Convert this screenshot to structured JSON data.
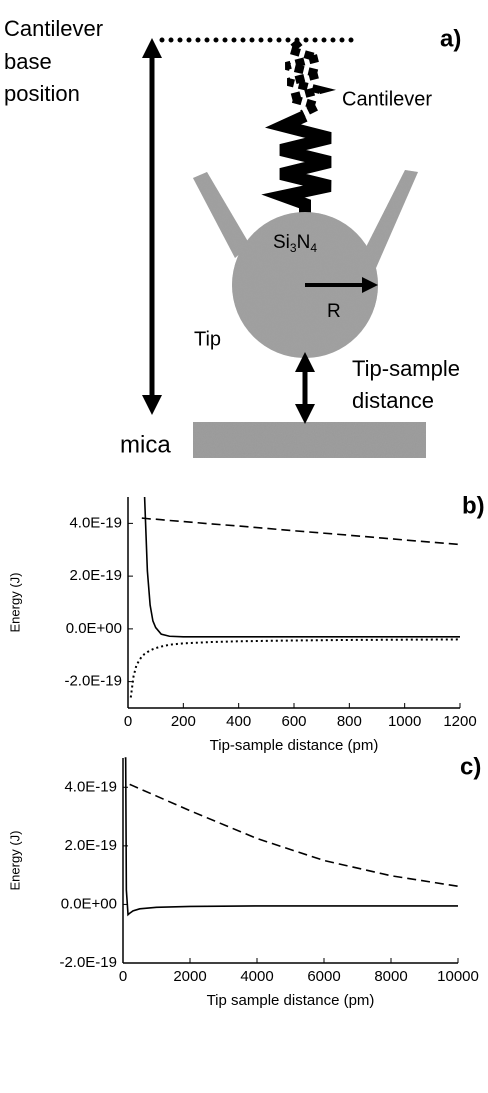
{
  "diagram": {
    "panel": "a)",
    "base_label": [
      "Cantilever",
      "base",
      "position"
    ],
    "cantilever": "Cantilever",
    "material": [
      "Si",
      "3",
      "N",
      "4"
    ],
    "radius": "R",
    "tip": "Tip",
    "distance_label": [
      "Tip-sample",
      "distance"
    ],
    "substrate": "mica"
  },
  "chart_data": [
    {
      "type": "line",
      "title": "b)",
      "xlabel": "Tip-sample distance (pm)",
      "ylabel": "Energy (J)",
      "x": [
        10,
        20,
        30,
        40,
        50,
        60,
        70,
        80,
        90,
        100,
        120,
        150,
        200,
        300,
        400,
        600,
        800,
        1000,
        1200
      ],
      "series": [
        {
          "color": "#000000",
          "dash": "solid",
          "values": [
            null,
            null,
            null,
            null,
            null,
            5e-19,
            2.2e-19,
            9e-20,
            3e-20,
            5e-21,
            -2e-20,
            -2.8e-20,
            -3e-20,
            -3e-20,
            -3e-20,
            -3e-20,
            -3e-20,
            -3e-20,
            -3e-20
          ]
        },
        {
          "color": "#000000",
          "dash": "dashed",
          "values": [
            null,
            null,
            null,
            null,
            4.2e-19,
            4.19e-19,
            4.18e-19,
            4.17e-19,
            4.17e-19,
            4.16e-19,
            4.14e-19,
            4.11e-19,
            4.07e-19,
            3.98e-19,
            3.9e-19,
            3.72e-19,
            3.55e-19,
            3.37e-19,
            3.2e-19
          ]
        },
        {
          "color": "#000000",
          "dash": "dotted",
          "values": [
            -2.6e-19,
            -1.8e-19,
            -1.4e-19,
            -1.2e-19,
            -1.05e-19,
            -9.5e-20,
            -8.8e-20,
            -8.2e-20,
            -7.7e-20,
            -7.3e-20,
            -6.7e-20,
            -6e-20,
            -5.5e-20,
            -5e-20,
            -4.7e-20,
            -4.4e-20,
            -4.2e-20,
            -4.1e-20,
            -4e-20
          ]
        }
      ],
      "xlim": [
        0,
        1200
      ],
      "xticks": [
        0,
        200,
        400,
        600,
        800,
        1000,
        1200
      ],
      "ylim": [
        -3e-19,
        5e-19
      ],
      "yticks": [
        {
          "value": -2e-19,
          "label": "-2.0E-19"
        },
        {
          "value": 0,
          "label": "0.0E+00"
        },
        {
          "value": 2e-19,
          "label": "2.0E-19"
        },
        {
          "value": 4e-19,
          "label": "4.0E-19"
        }
      ],
      "grid": false
    },
    {
      "type": "line",
      "title": "c)",
      "xlabel": "Tip sample distance (pm)",
      "ylabel": "Energy (J)",
      "x": [
        50,
        80,
        100,
        150,
        200,
        300,
        500,
        1000,
        2000,
        4000,
        6000,
        8000,
        10000
      ],
      "series": [
        {
          "color": "#000000",
          "dash": "solid",
          "values": [
            5e-19,
            5e-19,
            5e-20,
            -3.5e-20,
            -3e-20,
            -2.2e-20,
            -1.5e-20,
            -1e-20,
            -7e-21,
            -5e-21,
            -5e-21,
            -5e-21,
            -5e-21
          ]
        },
        {
          "color": "#000000",
          "dash": "dashed",
          "values": [
            null,
            null,
            null,
            null,
            4.1e-19,
            4.05e-19,
            3.95e-19,
            3.7e-19,
            3.2e-19,
            2.25e-19,
            1.5e-19,
            9.8e-20,
            6.2e-20
          ]
        }
      ],
      "xlim": [
        0,
        10000
      ],
      "xticks": [
        0,
        2000,
        4000,
        6000,
        8000,
        10000
      ],
      "ylim": [
        -2e-19,
        5e-19
      ],
      "yticks": [
        {
          "value": -2e-19,
          "label": "-2.0E-19"
        },
        {
          "value": 0,
          "label": "0.0E+00"
        },
        {
          "value": 2e-19,
          "label": "2.0E-19"
        },
        {
          "value": 4e-19,
          "label": "4.0E-19"
        }
      ],
      "grid": false
    }
  ]
}
